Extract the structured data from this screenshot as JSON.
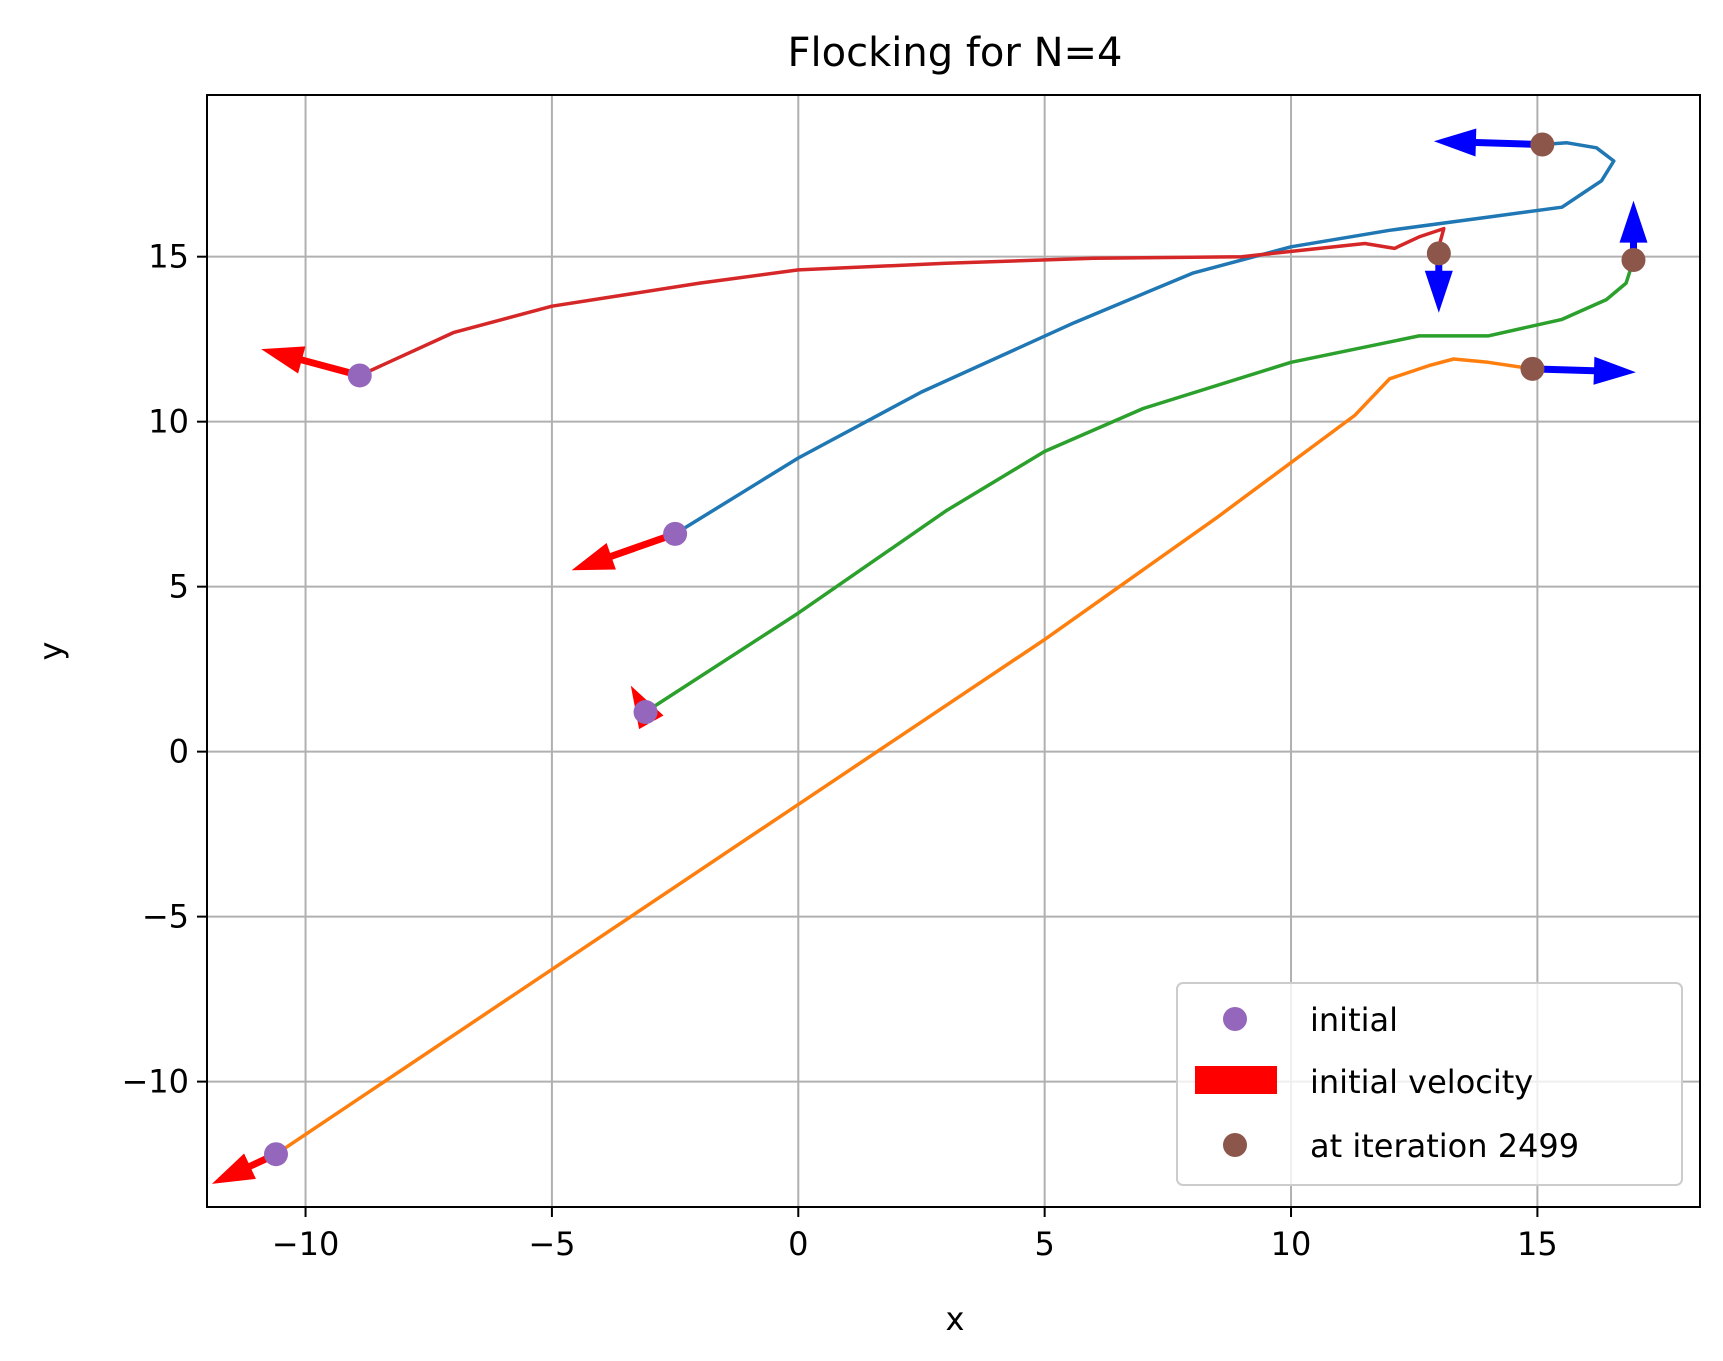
{
  "chart_data": {
    "type": "line",
    "title": "Flocking for N=4",
    "xlabel": "x",
    "ylabel": "y",
    "xlim": [
      -12,
      18.3
    ],
    "ylim": [
      -13.8,
      19.9
    ],
    "xticks": [
      -10,
      -5,
      0,
      5,
      10,
      15
    ],
    "xtick_labels": [
      "−10",
      "−5",
      "0",
      "5",
      "10",
      "15"
    ],
    "yticks": [
      -10,
      -5,
      0,
      5,
      10,
      15
    ],
    "ytick_labels": [
      "−10",
      "−5",
      "0",
      "5",
      "10",
      "15"
    ],
    "grid": true,
    "legend_position": "lower right",
    "colors": {
      "initial_marker": "#9467bd",
      "final_marker": "#8c564b",
      "initial_velocity": "#ff0000",
      "final_velocity": "#0000ff"
    },
    "series": [
      {
        "color": "#1f77b4",
        "points": [
          [
            -2.5,
            6.6
          ],
          [
            0,
            8.9
          ],
          [
            2.5,
            10.9
          ],
          [
            5.6,
            13.0
          ],
          [
            8,
            14.5
          ],
          [
            10,
            15.3
          ],
          [
            12,
            15.8
          ],
          [
            14,
            16.2
          ],
          [
            15.5,
            16.5
          ],
          [
            15.9,
            16.9
          ],
          [
            16.3,
            17.3
          ],
          [
            16.55,
            17.9
          ],
          [
            16.2,
            18.3
          ],
          [
            15.6,
            18.45
          ],
          [
            15.1,
            18.4
          ]
        ]
      },
      {
        "color": "#ff7f0e",
        "points": [
          [
            -10.6,
            -12.2
          ],
          [
            -5,
            -6.6
          ],
          [
            0,
            -1.6
          ],
          [
            5,
            3.4
          ],
          [
            8.5,
            7.1
          ],
          [
            11.3,
            10.2
          ],
          [
            12,
            11.3
          ],
          [
            12.8,
            11.7
          ],
          [
            13.3,
            11.9
          ],
          [
            14,
            11.8
          ],
          [
            14.9,
            11.6
          ]
        ]
      },
      {
        "color": "#2ca02c",
        "points": [
          [
            -3.1,
            1.2
          ],
          [
            0,
            4.2
          ],
          [
            3,
            7.3
          ],
          [
            5,
            9.1
          ],
          [
            7,
            10.4
          ],
          [
            10,
            11.8
          ],
          [
            12.6,
            12.6
          ],
          [
            14,
            12.6
          ],
          [
            15.5,
            13.1
          ],
          [
            16.4,
            13.7
          ],
          [
            16.8,
            14.2
          ],
          [
            16.95,
            14.9
          ]
        ]
      },
      {
        "color": "#d62728",
        "points": [
          [
            -8.9,
            11.4
          ],
          [
            -7,
            12.7
          ],
          [
            -5,
            13.5
          ],
          [
            -2,
            14.2
          ],
          [
            0,
            14.6
          ],
          [
            3,
            14.8
          ],
          [
            6,
            14.95
          ],
          [
            9,
            15.0
          ],
          [
            11.5,
            15.4
          ],
          [
            12.1,
            15.25
          ],
          [
            12.6,
            15.6
          ],
          [
            13.1,
            15.85
          ],
          [
            13.0,
            15.3
          ],
          [
            13.0,
            15.1
          ]
        ]
      }
    ],
    "initial_positions": [
      [
        -2.5,
        6.6
      ],
      [
        -10.6,
        -12.2
      ],
      [
        -3.1,
        1.2
      ],
      [
        -8.9,
        11.4
      ]
    ],
    "initial_velocities": [
      [
        -2.1,
        -1.1
      ],
      [
        -1.3,
        -0.9
      ],
      [
        -0.3,
        0.8
      ],
      [
        -2.0,
        0.8
      ]
    ],
    "final_positions": [
      [
        15.1,
        18.4
      ],
      [
        14.9,
        11.6
      ],
      [
        16.95,
        14.9
      ],
      [
        13.0,
        15.1
      ]
    ],
    "final_velocities": [
      [
        -2.2,
        0.1
      ],
      [
        2.1,
        -0.1
      ],
      [
        0,
        1.8
      ],
      [
        0,
        -1.8
      ]
    ],
    "legend": [
      {
        "label": "initial",
        "kind": "marker",
        "color": "#9467bd"
      },
      {
        "label": "initial velocity",
        "kind": "bar",
        "color": "#ff0000"
      },
      {
        "label": "at iteration 2499",
        "kind": "marker",
        "color": "#8c564b"
      }
    ]
  }
}
